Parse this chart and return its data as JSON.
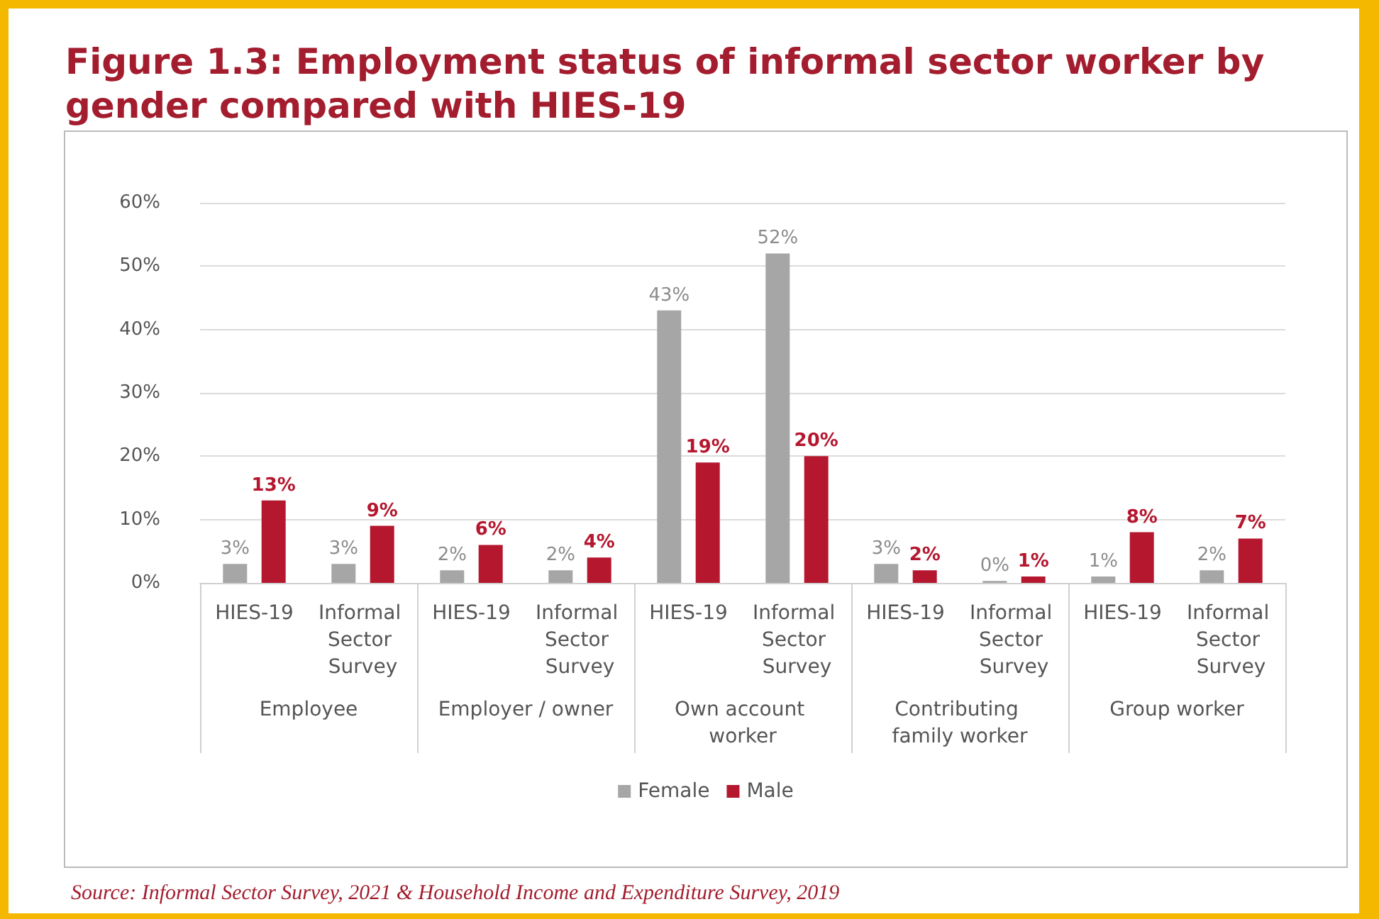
{
  "chart_data": {
    "type": "bar",
    "title": "Figure 1.3: Employment status of informal sector worker by gender compared with HIES-19",
    "categories": [
      "HIES-19",
      "Informal Sector Survey",
      "HIES-19",
      "Informal Sector Survey",
      "HIES-19",
      "Informal Sector Survey",
      "HIES-19",
      "Informal Sector Survey",
      "HIES-19",
      "Informal Sector Survey"
    ],
    "series": [
      {
        "name": "Female",
        "color": "#a6a6a6",
        "values": [
          3,
          3,
          2,
          2,
          43,
          52,
          3,
          0.3,
          1,
          2
        ],
        "value_labels": [
          "3%",
          "3%",
          "2%",
          "2%",
          "43%",
          "52%",
          "3%",
          "0%",
          "1%",
          "2%"
        ]
      },
      {
        "name": "Male",
        "color": "#b5172f",
        "values": [
          13,
          9,
          6,
          4,
          19,
          20,
          2,
          1,
          8,
          7
        ],
        "value_labels": [
          "13%",
          "9%",
          "6%",
          "4%",
          "19%",
          "20%",
          "2%",
          "1%",
          "8%",
          "7%"
        ]
      }
    ],
    "ylim": [
      0,
      60
    ],
    "yticks": [
      {
        "value": 0,
        "label": "0%"
      },
      {
        "value": 10,
        "label": "10%"
      },
      {
        "value": 20,
        "label": "20%"
      },
      {
        "value": 30,
        "label": "30%"
      },
      {
        "value": 40,
        "label": "40%"
      },
      {
        "value": 50,
        "label": "50%"
      },
      {
        "value": 60,
        "label": "60%"
      }
    ],
    "grid": "y",
    "legend": "bottom",
    "annotations": [
      "Employee",
      "Employer / owner",
      "Own account worker",
      "Contributing family worker",
      "Group worker",
      "Source: Informal Sector Survey, 2021 & Household Income and Expenditure Survey, 2019"
    ]
  }
}
